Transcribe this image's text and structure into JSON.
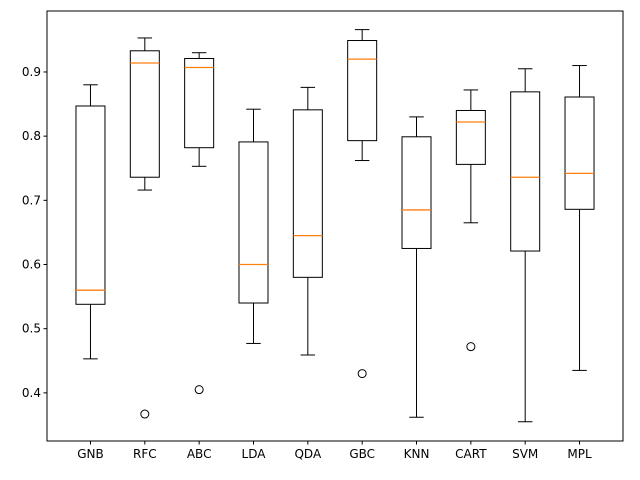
{
  "chart_data": {
    "type": "box",
    "title": "",
    "xlabel": "",
    "ylabel": "",
    "ylim": [
      0.325,
      0.995
    ],
    "y_ticks": [
      0.4,
      0.5,
      0.6,
      0.7,
      0.8,
      0.9
    ],
    "y_tick_labels": [
      "0.4",
      "0.5",
      "0.6",
      "0.7",
      "0.8",
      "0.9"
    ],
    "grid": false,
    "categories": [
      "GNB",
      "RFC",
      "ABC",
      "LDA",
      "QDA",
      "GBC",
      "KNN",
      "CART",
      "SVM",
      "MPL"
    ],
    "boxes": [
      {
        "name": "GNB",
        "whisker_low": 0.453,
        "q1": 0.538,
        "median": 0.56,
        "q3": 0.847,
        "whisker_high": 0.88,
        "outliers": []
      },
      {
        "name": "RFC",
        "whisker_low": 0.716,
        "q1": 0.736,
        "median": 0.914,
        "q3": 0.933,
        "whisker_high": 0.953,
        "outliers": [
          0.367
        ]
      },
      {
        "name": "ABC",
        "whisker_low": 0.753,
        "q1": 0.782,
        "median": 0.907,
        "q3": 0.921,
        "whisker_high": 0.93,
        "outliers": [
          0.405
        ]
      },
      {
        "name": "LDA",
        "whisker_low": 0.477,
        "q1": 0.54,
        "median": 0.6,
        "q3": 0.791,
        "whisker_high": 0.842,
        "outliers": []
      },
      {
        "name": "QDA",
        "whisker_low": 0.459,
        "q1": 0.58,
        "median": 0.645,
        "q3": 0.841,
        "whisker_high": 0.876,
        "outliers": []
      },
      {
        "name": "GBC",
        "whisker_low": 0.762,
        "q1": 0.793,
        "median": 0.92,
        "q3": 0.949,
        "whisker_high": 0.966,
        "outliers": [
          0.43
        ]
      },
      {
        "name": "KNN",
        "whisker_low": 0.362,
        "q1": 0.625,
        "median": 0.685,
        "q3": 0.799,
        "whisker_high": 0.83,
        "outliers": []
      },
      {
        "name": "CART",
        "whisker_low": 0.665,
        "q1": 0.756,
        "median": 0.822,
        "q3": 0.84,
        "whisker_high": 0.872,
        "outliers": [
          0.472
        ]
      },
      {
        "name": "SVM",
        "whisker_low": 0.355,
        "q1": 0.621,
        "median": 0.736,
        "q3": 0.869,
        "whisker_high": 0.905,
        "outliers": []
      },
      {
        "name": "MPL",
        "whisker_low": 0.435,
        "q1": 0.686,
        "median": 0.742,
        "q3": 0.861,
        "whisker_high": 0.91,
        "outliers": []
      }
    ],
    "colors": {
      "box": "#000000",
      "median": "#ff7f0e",
      "whisker": "#000000",
      "outlier": "#000000",
      "axes": "#000000"
    }
  }
}
